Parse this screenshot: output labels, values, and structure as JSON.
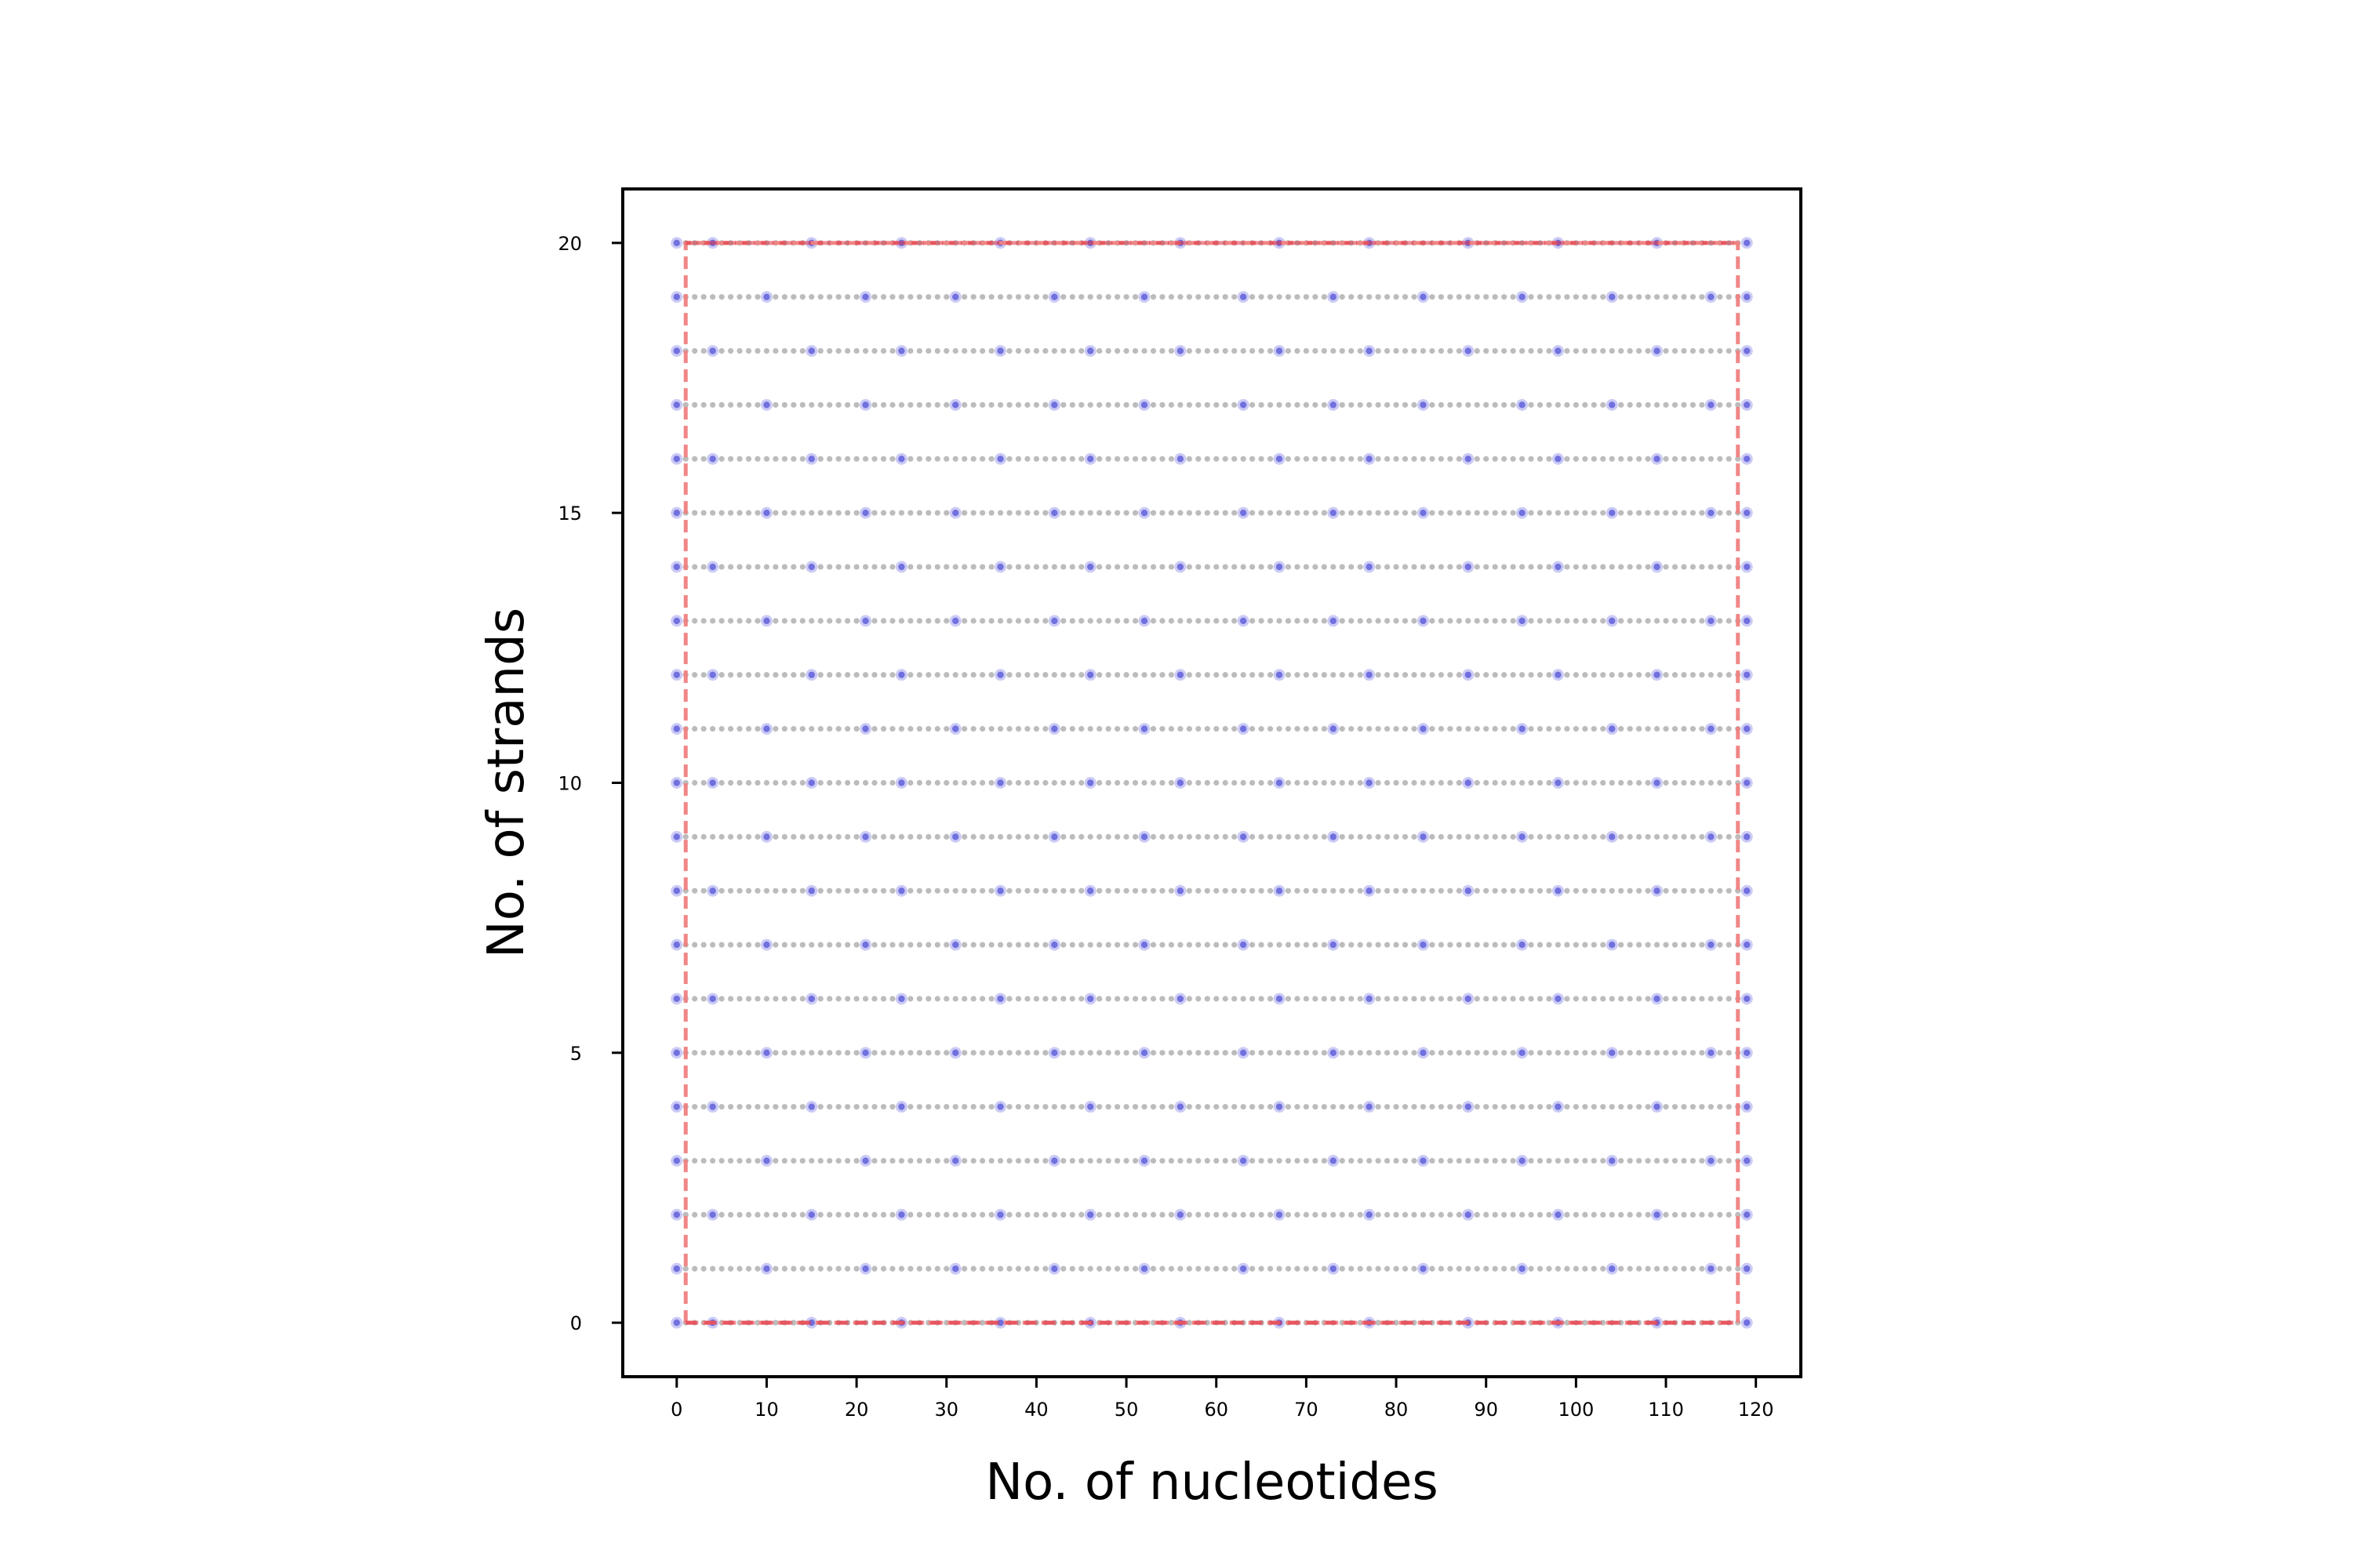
{
  "chart_data": {
    "type": "scatter",
    "xlabel": "No. of nucleotides",
    "ylabel": "No. of strands",
    "xlim": [
      -6,
      125
    ],
    "ylim": [
      -1,
      21
    ],
    "xticks": [
      0,
      10,
      20,
      30,
      40,
      50,
      60,
      70,
      80,
      90,
      100,
      110,
      120
    ],
    "yticks": [
      0,
      5,
      10,
      15,
      20
    ],
    "grid": false,
    "legend": "none",
    "colors": {
      "nucleotide_point": "#b0b0b0",
      "crossover_point": "#6a6ae0",
      "boundary_line": "#f08080",
      "boundary_line_dark": "#e03040"
    },
    "series": [
      {
        "marker": "nucleotide",
        "x_range": [
          0,
          119
        ],
        "x_step": 1,
        "y_values": [
          0,
          1,
          2,
          3,
          4,
          5,
          6,
          7,
          8,
          9,
          10,
          11,
          12,
          13,
          14,
          15,
          16,
          17,
          18,
          19,
          20
        ]
      },
      {
        "marker": "crossover",
        "rows_even": [
          0,
          2,
          4,
          6,
          8,
          10,
          12,
          14,
          16,
          18,
          20
        ],
        "x_even": [
          0,
          4,
          15,
          25,
          36,
          46,
          56,
          67,
          77,
          88,
          98,
          109,
          119
        ],
        "rows_odd": [
          1,
          3,
          5,
          7,
          9,
          11,
          13,
          15,
          17,
          19
        ],
        "x_odd": [
          0,
          10,
          21,
          31,
          42,
          52,
          63,
          73,
          83,
          94,
          104,
          115,
          119
        ]
      },
      {
        "marker": "boundary",
        "style": "dashed",
        "path": [
          [
            1,
            0
          ],
          [
            1,
            20
          ],
          [
            118,
            20
          ],
          [
            118,
            0
          ],
          [
            1,
            0
          ]
        ]
      }
    ]
  }
}
